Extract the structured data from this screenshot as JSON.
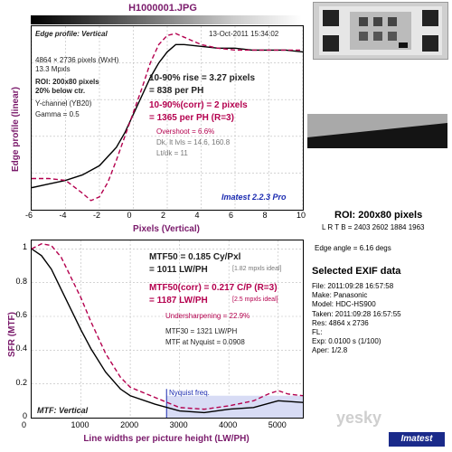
{
  "header": {
    "filename": "H1000001.JPG"
  },
  "edge": {
    "title": "Edge profile: Vertical",
    "date": "13-Oct-2011 15:34:02",
    "pixels": "4864 × 2736 pixels (WxH)",
    "mpxls": "13.3 Mpxls",
    "roi": "ROI: 200x80 pixels",
    "roi2": "20% below ctr.",
    "channel": "Y-channel (YB20)",
    "gamma": "Gamma = 0.5",
    "rise": "10-90% rise = 3.27 pixels",
    "rise_ph": "= 838 per PH",
    "corr": "10-90%(corr) = 2 pixels",
    "corr_ph": "= 1365 per PH  (R=3)",
    "overshoot": "Overshoot = 6.6%",
    "dk": "Dk, lt lvls = 14.6, 160.8",
    "ltdk": "Lt/dk = 11",
    "brand": "Imatest 2.2.3 Pro",
    "ylabel": "Edge profile (linear)",
    "xlabel": "Pixels (Vertical)",
    "xticks": [
      "-6",
      "-4",
      "-2",
      "0",
      "2",
      "4",
      "6",
      "8",
      "10"
    ]
  },
  "mtf": {
    "mtf50": "MTF50 = 0.185 Cy/Pxl",
    "mtf50_lw": "= 1011 LW/PH",
    "mtf50_ideal": "[1.82 mpxls ideal]",
    "mtf50c": "MTF50(corr) = 0.217 C/P  (R=3)",
    "mtf50c_lw": "= 1187 LW/PH",
    "mtf50c_ideal": "[2.5 mpxls ideal]",
    "under": "Undersharpening = 22.9%",
    "mtf30": "MTF30 = 1321 LW/PH",
    "nyq": "MTF at Nyquist = 0.0908",
    "nyq_label": "Nyquist freq.",
    "title": "MTF: Vertical",
    "ylabel": "SFR (MTF)",
    "xlabel": "Line widths per picture height (LW/PH)",
    "xticks": [
      "0",
      "1000",
      "2000",
      "3000",
      "4000",
      "5000"
    ],
    "yticks": [
      "1",
      "0.8",
      "0.6",
      "0.4",
      "0.2",
      "0"
    ]
  },
  "roi_info": {
    "title": "ROI: 200x80 pixels",
    "lrtb": "L R T B = 2403 2602  1884 1963",
    "angle": "Edge angle = 6.16 degs"
  },
  "exif": {
    "title": "Selected EXIF data",
    "rows": [
      "File:  2011:09:28 16:57:58",
      "Make:  Panasonic",
      "Model:  HDC-HS900",
      "Taken:  2011:09:28 16:57:55",
      "Res:   4864 x 2736",
      "FL:",
      "Exp:    0.0100 s  (1/100)",
      "Aper:   1/2.8"
    ]
  },
  "chart_data": [
    {
      "type": "line",
      "title": "Edge profile: Vertical",
      "xlabel": "Pixels (Vertical)",
      "ylabel": "Edge profile (linear)",
      "xlim": [
        -6,
        10
      ],
      "series": [
        {
          "color": "#000000",
          "x": [
            -6,
            -5,
            -4,
            -3,
            -2,
            -1,
            -0.5,
            0,
            0.5,
            1,
            1.5,
            2,
            2.5,
            3,
            4,
            5,
            6,
            7,
            8,
            9,
            10
          ],
          "y": [
            0.12,
            0.14,
            0.16,
            0.19,
            0.24,
            0.34,
            0.42,
            0.52,
            0.62,
            0.72,
            0.8,
            0.86,
            0.9,
            0.9,
            0.89,
            0.88,
            0.88,
            0.87,
            0.87,
            0.87,
            0.86
          ]
        },
        {
          "color": "#b4004e",
          "x": [
            -6,
            -5,
            -4,
            -3,
            -2.5,
            -2,
            -1.5,
            -1,
            -0.5,
            0,
            0.5,
            1,
            1.5,
            2,
            2.5,
            3,
            4,
            5,
            6,
            7,
            8,
            9,
            10
          ],
          "y": [
            0.17,
            0.17,
            0.16,
            0.09,
            0.05,
            0.07,
            0.15,
            0.27,
            0.4,
            0.53,
            0.66,
            0.8,
            0.9,
            0.95,
            0.96,
            0.94,
            0.9,
            0.88,
            0.87,
            0.87,
            0.87,
            0.87,
            0.87
          ]
        }
      ]
    },
    {
      "type": "line",
      "title": "MTF: Vertical",
      "xlabel": "Line widths per picture height (LW/PH)",
      "ylabel": "SFR (MTF)",
      "xlim": [
        0,
        5500
      ],
      "ylim": [
        0,
        1.05
      ],
      "series": [
        {
          "color": "#000000",
          "x": [
            0,
            200,
            400,
            600,
            800,
            1000,
            1200,
            1500,
            1800,
            2000,
            2500,
            3000,
            3500,
            4000,
            4500,
            5000,
            5500
          ],
          "y": [
            1,
            0.96,
            0.88,
            0.76,
            0.64,
            0.52,
            0.41,
            0.27,
            0.17,
            0.13,
            0.08,
            0.04,
            0.03,
            0.05,
            0.06,
            0.1,
            0.09
          ]
        },
        {
          "color": "#b4004e",
          "x": [
            0,
            200,
            400,
            600,
            800,
            1000,
            1200,
            1500,
            1800,
            2000,
            2500,
            3000,
            3500,
            4000,
            4500,
            4800,
            5000,
            5200,
            5500
          ],
          "y": [
            1,
            1.03,
            1.02,
            0.95,
            0.83,
            0.71,
            0.57,
            0.38,
            0.24,
            0.18,
            0.12,
            0.06,
            0.05,
            0.07,
            0.1,
            0.14,
            0.16,
            0.14,
            0.13
          ]
        }
      ]
    }
  ]
}
